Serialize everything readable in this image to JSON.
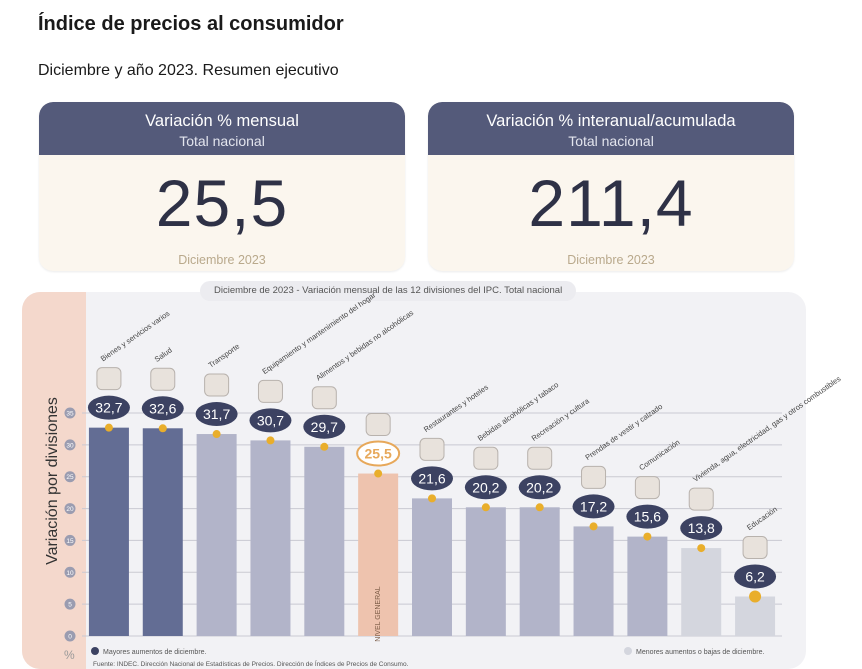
{
  "header": {
    "title": "Índice de precios al consumidor",
    "subtitle": "Diciembre y año 2023. Resumen ejecutivo"
  },
  "cards": [
    {
      "title": "Variación % mensual",
      "subtitle": "Total nacional",
      "value": "25,5",
      "footer": "Diciembre 2023"
    },
    {
      "title": "Variación % interanual/acumulada",
      "subtitle": "Total nacional",
      "value": "211,4",
      "footer": "Diciembre 2023"
    }
  ],
  "chart_data": {
    "type": "bar",
    "title": "Diciembre de 2023 - Variación mensual de las 12 divisiones del IPC. Total nacional",
    "ylabel": "Variación por divisiones",
    "yunit": "%",
    "ylim": [
      0,
      35
    ],
    "yticks": [
      0,
      5,
      10,
      15,
      20,
      25,
      30,
      35
    ],
    "grid": true,
    "categories": [
      "Bienes y servicios varios",
      "Salud",
      "Transporte",
      "Equipamiento y mantenimiento del hogar",
      "Alimentos y bebidas no alcohólicas",
      "NIVEL GENERAL",
      "Restaurantes y hoteles",
      "Bebidas alcohólicas y tabaco",
      "Recreación y cultura",
      "Prendas de vestir y calzado",
      "Comunicación",
      "Vivienda, agua, electricidad, gas y otros combustibles",
      "Educación"
    ],
    "values": [
      32.7,
      32.6,
      31.7,
      30.7,
      29.7,
      25.5,
      21.6,
      20.2,
      20.2,
      17.2,
      15.6,
      13.8,
      6.2
    ],
    "value_labels": [
      "32,7",
      "32,6",
      "31,7",
      "30,7",
      "29,7",
      "25,5",
      "21,6",
      "20,2",
      "20,2",
      "17,2",
      "15,6",
      "13,8",
      "6,2"
    ],
    "groups": [
      "top",
      "top",
      "mid",
      "mid",
      "mid",
      "general",
      "mid",
      "mid",
      "mid",
      "mid",
      "mid",
      "low",
      "low"
    ],
    "colors": {
      "top": "#636d94",
      "mid": "#b2b4c9",
      "low": "#d4d6de",
      "general": "#eec3ae",
      "badge": "#3c4262",
      "general_badge": "#e7a85a",
      "dot": "#e9ae2b"
    },
    "legend": [
      {
        "label": "Mayores aumentos de diciembre.",
        "color": "#3c4262",
        "position": "bottom-left"
      },
      {
        "label": "Menores aumentos o bajas de diciembre.",
        "color": "#d4d6de",
        "position": "bottom-right"
      }
    ],
    "source": "Fuente: INDEC. Dirección Nacional de Estadísticas de Precios. Dirección de Índices de Precios de Consumo."
  }
}
